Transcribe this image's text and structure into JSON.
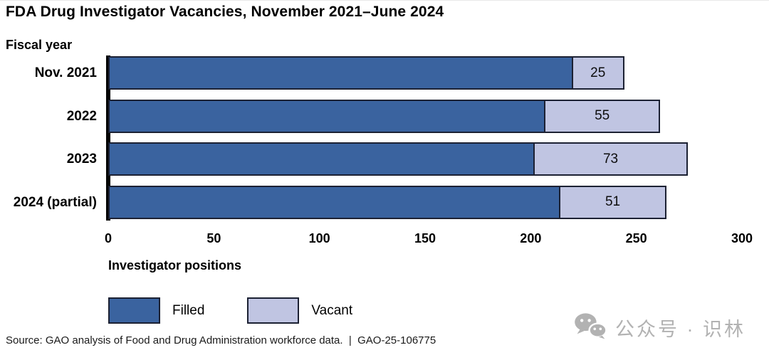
{
  "page": {
    "title": "FDA Drug Investigator Vacancies, November 2021–June 2024",
    "fiscal_year_label": "Fiscal year",
    "source_line": "Source: GAO analysis of Food and Drug Administration workforce data.  |  GAO-25-106775",
    "watermark_text": "公众号 · 识林",
    "watermark_color": "#b2b2b2"
  },
  "colors": {
    "filled": "#3a639f",
    "vacant": "#c0c5e2",
    "bar_border": "#1c2133",
    "axis": "#000000"
  },
  "chart_data": {
    "type": "bar",
    "orientation": "horizontal",
    "stacked": true,
    "title": "FDA Drug Investigator Vacancies, November 2021–June 2024",
    "categories": [
      "Nov. 2021",
      "2022",
      "2023",
      "2024 (partial)"
    ],
    "series": [
      {
        "name": "Filled",
        "color": "#3a639f",
        "values": [
          220,
          207,
          202,
          214
        ],
        "values_estimated_from_axis": true
      },
      {
        "name": "Vacant",
        "color": "#c0c5e2",
        "values": [
          25,
          55,
          73,
          51
        ],
        "data_labels_shown": true
      }
    ],
    "xlabel": "Investigator positions",
    "y_axis_heading": "Fiscal year",
    "x_ticks": [
      0,
      50,
      100,
      150,
      200,
      250,
      300
    ],
    "xlim": [
      0,
      300
    ],
    "grid": false,
    "legend": [
      "Filled",
      "Vacant"
    ],
    "legend_position": "bottom-left"
  }
}
